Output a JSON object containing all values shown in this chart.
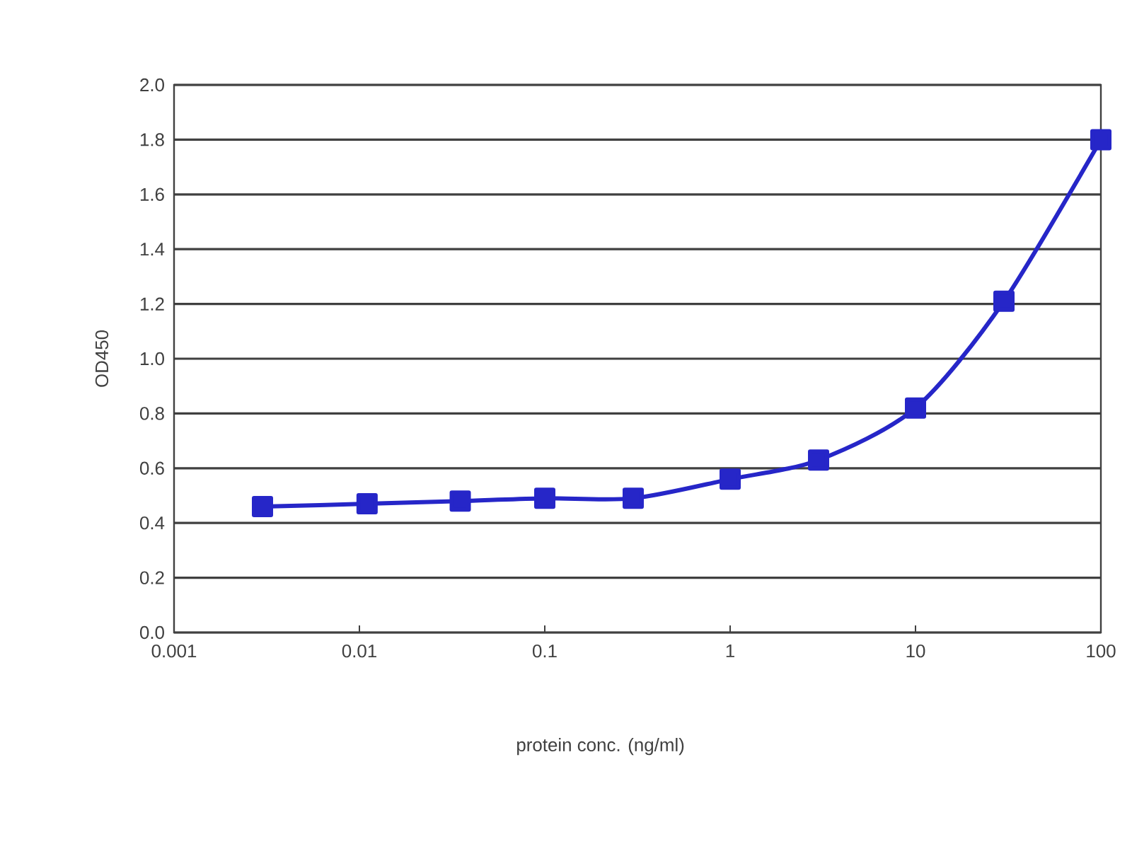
{
  "chart_data": {
    "type": "line",
    "xlabel": "protein conc. (ng/ml)",
    "ylabel": "OD450",
    "x": [
      0.003,
      0.011,
      0.035,
      0.1,
      0.3,
      1,
      3,
      10,
      30,
      100
    ],
    "values": [
      0.46,
      0.47,
      0.48,
      0.49,
      0.49,
      0.56,
      0.63,
      0.82,
      1.21,
      1.8
    ],
    "color": "#2626c8",
    "xlim": [
      0.001,
      100
    ],
    "xticks": [
      0.001,
      0.01,
      0.1,
      1,
      10,
      100
    ],
    "ylim": [
      0,
      2
    ],
    "yticks": [
      {
        "value": 0,
        "label": "0.0"
      },
      0.2,
      0.4,
      0.6,
      0.8,
      {
        "value": 1,
        "label": "1.0"
      },
      1.2,
      1.4,
      1.6,
      1.8,
      {
        "value": 2,
        "label": "2.0"
      }
    ],
    "log": "x",
    "grid": "y",
    "marker": "square",
    "line_style": "solid"
  }
}
